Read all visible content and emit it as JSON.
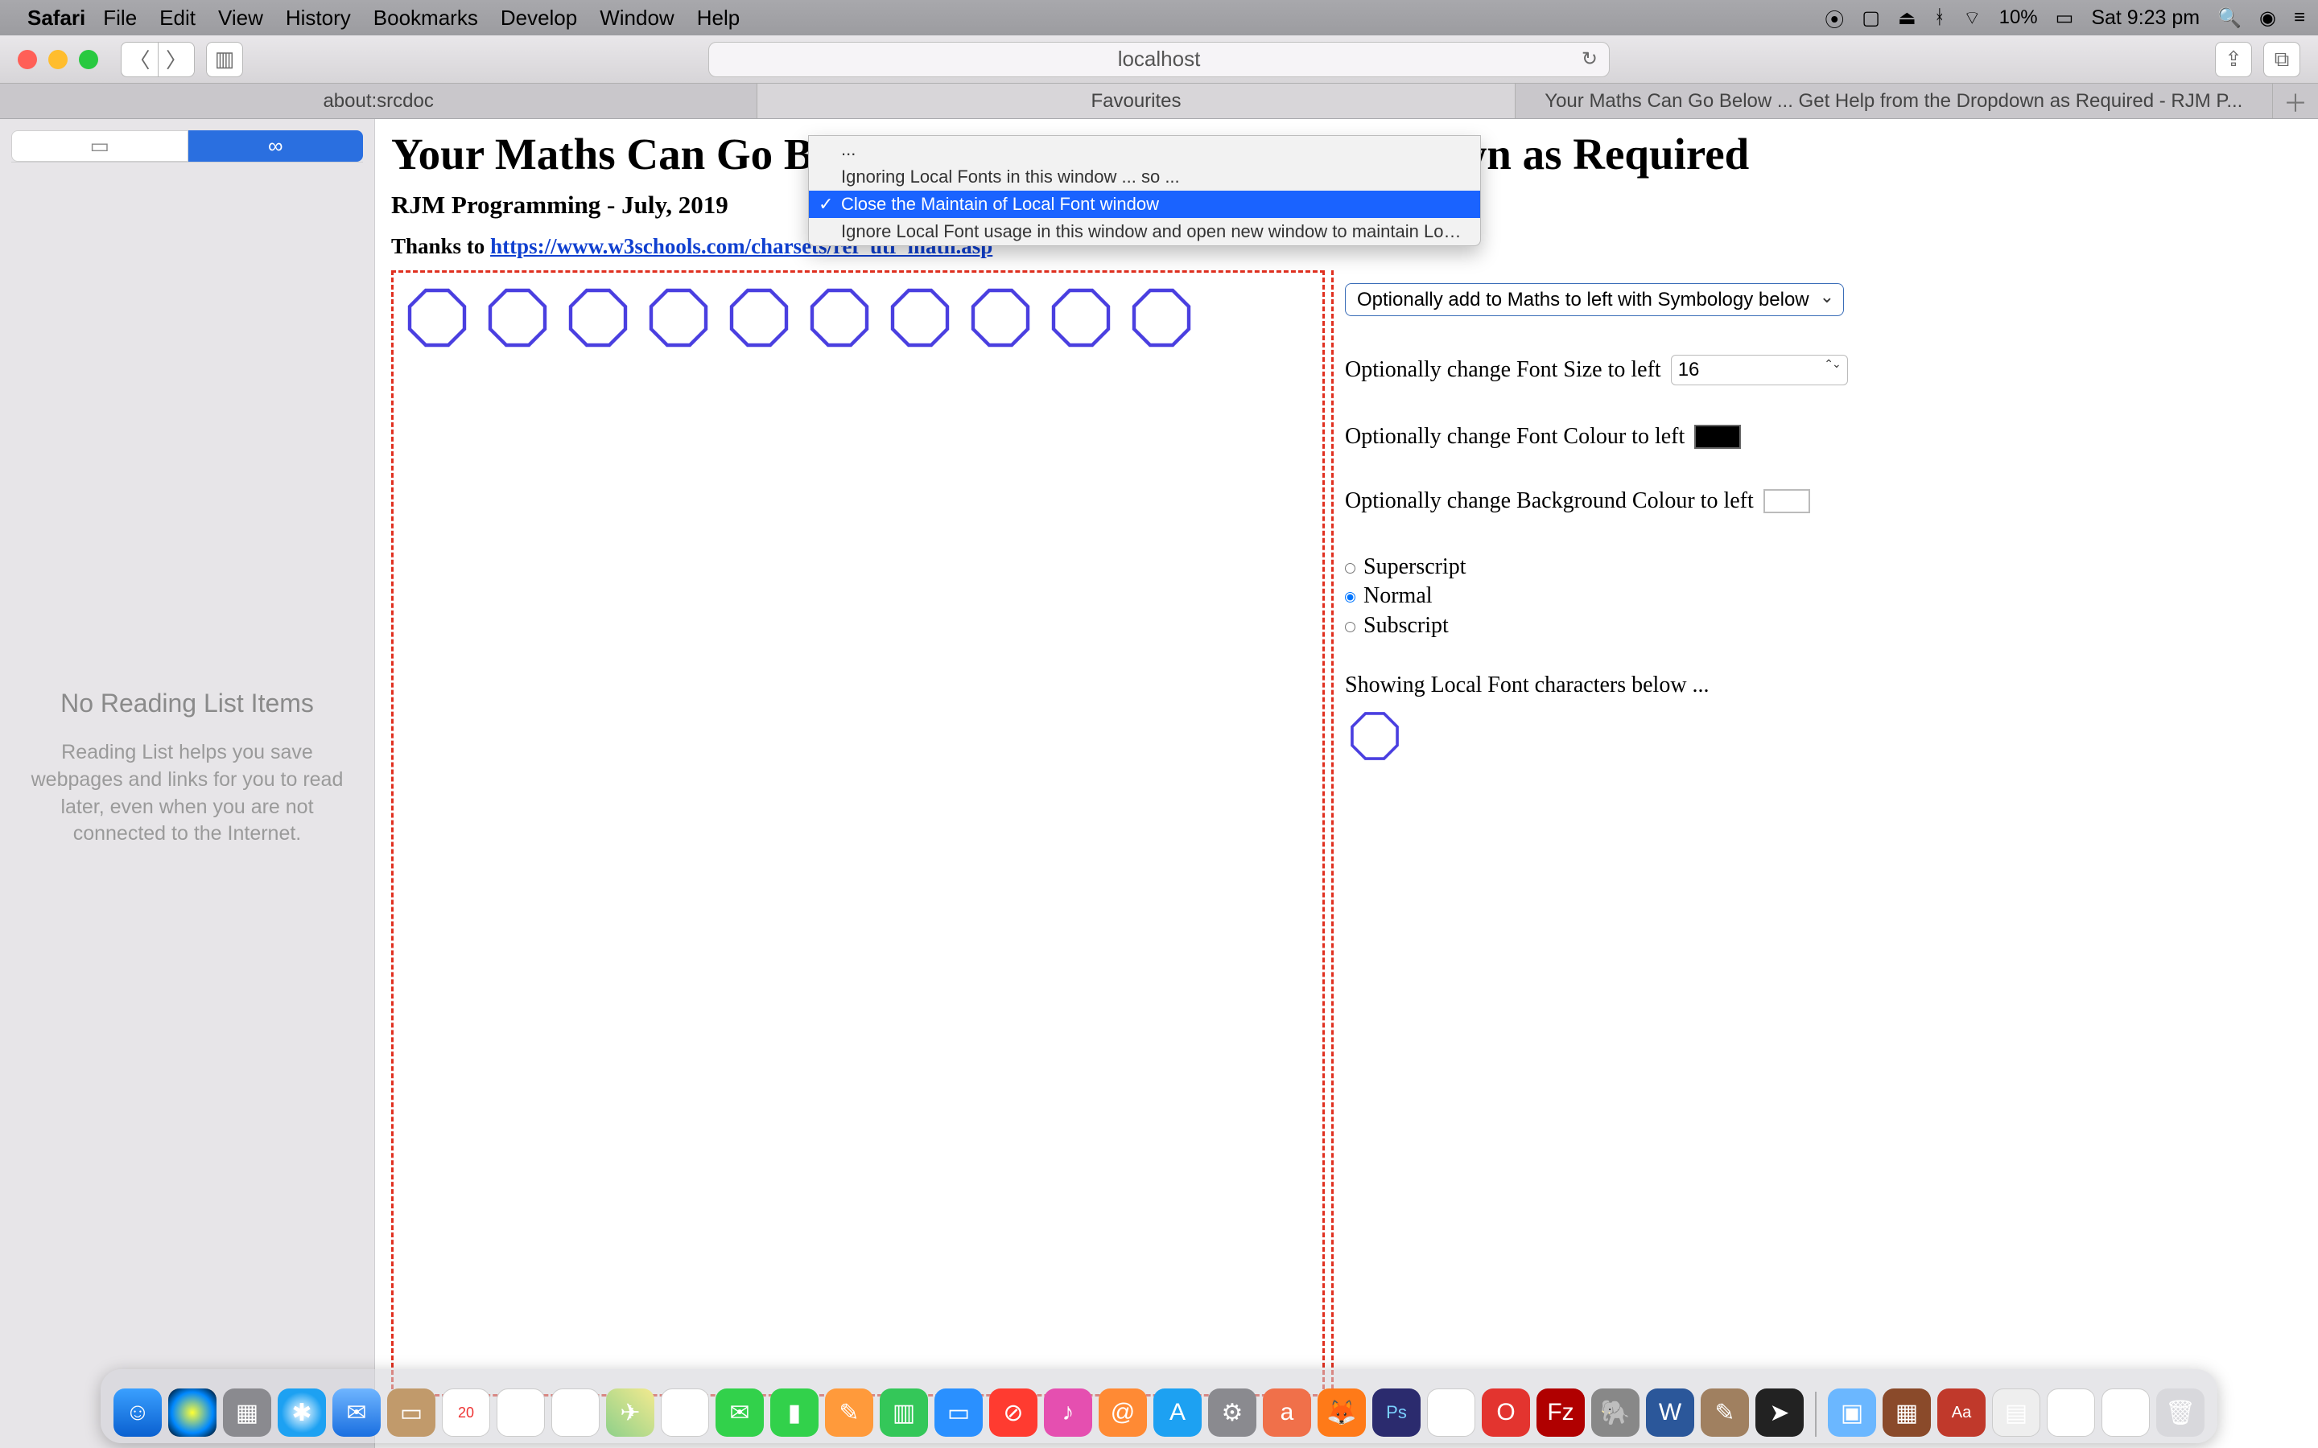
{
  "menubar": {
    "app": "Safari",
    "items": [
      "File",
      "Edit",
      "View",
      "History",
      "Bookmarks",
      "Develop",
      "Window",
      "Help"
    ],
    "battery_pct": "10%",
    "clock": "Sat 9:23 pm"
  },
  "toolbar": {
    "url": "localhost"
  },
  "tabs": {
    "items": [
      "about:srcdoc",
      "Favourites",
      "Your Maths Can Go Below ... Get Help from the Dropdown as Required - RJM P..."
    ],
    "active_index": 1
  },
  "sidebar": {
    "empty_title": "No Reading List Items",
    "empty_body": "Reading List helps you save webpages and links for you to read later, even when you are not connected to the Internet."
  },
  "page": {
    "h1": "Your Maths Can Go Below ... Get Help from the Dropdown as Required",
    "h2": "RJM Programming - July, 2019",
    "thanks_prefix": "Thanks to ",
    "thanks_link_text": "https://www.w3schools.com/charsets/ref_utf_math.asp",
    "octagon_count": 10,
    "octagon_color": "#4a3fe0",
    "right_panel": {
      "symbology_select": "Optionally add to Maths to left with Symbology below",
      "font_size_label": "Optionally change Font Size to left",
      "font_size_value": "16",
      "font_colour_label": "Optionally change Font Colour to left",
      "bg_colour_label": "Optionally change Background Colour to left",
      "radios": {
        "sup": "Superscript",
        "normal": "Normal",
        "sub": "Subscript",
        "checked": "normal"
      },
      "localfont_msg": "Showing Local Font characters below ..."
    }
  },
  "dropdown": {
    "options": [
      "...",
      "Ignoring Local Fonts in this window ... so ...",
      "Close the Maintain of Local Font window",
      "Ignore Local Font usage in this window and open new window to maintain Local Fonts ..."
    ],
    "selected_index": 2
  },
  "dock": {
    "cal_day": "20"
  },
  "colors": {
    "dash_border": "#e03020",
    "link": "#1040d0",
    "dropdown_sel": "#1a63ff"
  }
}
